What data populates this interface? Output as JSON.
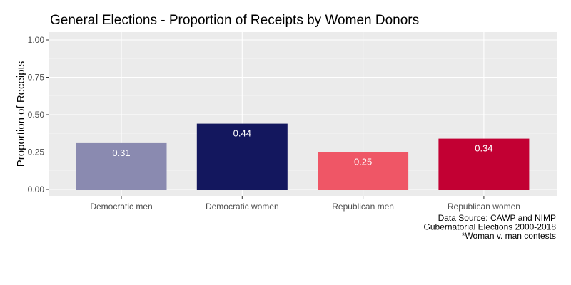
{
  "chart_data": {
    "type": "bar",
    "title": "General Elections - Proportion of Receipts by Women Donors",
    "xlabel": "",
    "ylabel": "Proportion of Receipts",
    "ylim": [
      0,
      1
    ],
    "yticks": [
      0,
      0.25,
      0.5,
      0.75,
      1
    ],
    "ytick_labels": [
      "0.00",
      "0.25",
      "0.50",
      "0.75",
      "1.00"
    ],
    "categories": [
      "Democratic men",
      "Democratic women",
      "Republican men",
      "Republican women"
    ],
    "values": [
      0.31,
      0.44,
      0.25,
      0.34
    ],
    "value_labels": [
      "0.31",
      "0.44",
      "0.25",
      "0.34"
    ],
    "colors": [
      "#8a8ab0",
      "#13175e",
      "#ef5666",
      "#c20033"
    ],
    "grid": true,
    "panel_background": "#ebebeb",
    "caption": [
      "Data Source: CAWP and NIMP",
      "Gubernatorial Elections 2000-2018",
      "*Woman v. man contests"
    ]
  }
}
